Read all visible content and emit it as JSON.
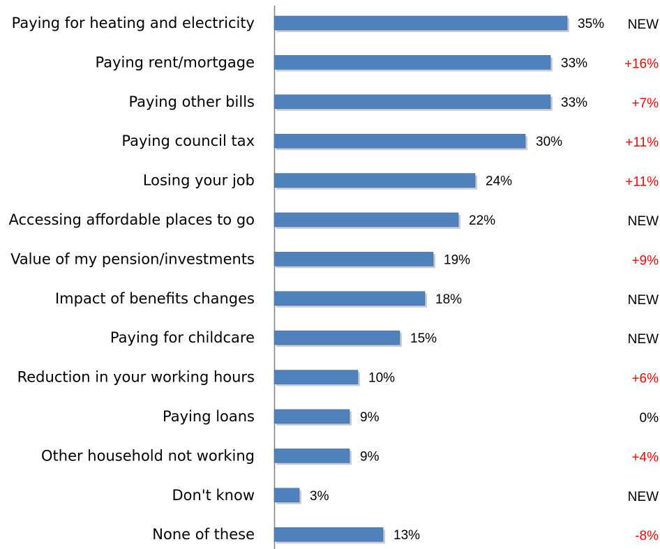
{
  "chart_data": {
    "type": "bar",
    "orientation": "horizontal",
    "title": "",
    "xlabel": "",
    "ylabel": "",
    "xlim": [
      0,
      35
    ],
    "grid": false,
    "legend": "none",
    "colors": {
      "bar": "#4F81BD",
      "bar_shadow": "#B7B7B7",
      "axis": "#7F7F7F",
      "change_positive": "#FF0000",
      "change_neutral": "#000000"
    },
    "categories": [
      "Paying for heating and electricity",
      "Paying rent/mortgage",
      "Paying other bills",
      "Paying council tax",
      "Losing your job",
      "Accessing affordable places to go",
      "Value of my pension/investments",
      "Impact of benefits changes",
      "Paying for childcare",
      "Reduction in your working hours",
      "Paying loans",
      "Other household not working",
      "Don't know",
      "None of these"
    ],
    "values": [
      35,
      33,
      33,
      30,
      24,
      22,
      19,
      18,
      15,
      10,
      9,
      9,
      3,
      13
    ],
    "value_labels": [
      "35%",
      "33%",
      "33%",
      "30%",
      "24%",
      "22%",
      "19%",
      "18%",
      "15%",
      "10%",
      "9%",
      "9%",
      "3%",
      "13%"
    ],
    "changes": [
      "NEW",
      "+16%",
      "+7%",
      "+11%",
      "+11%",
      "NEW",
      "+9%",
      "NEW",
      "NEW",
      "+6%",
      "0%",
      "+4%",
      "NEW",
      "-8%"
    ]
  }
}
